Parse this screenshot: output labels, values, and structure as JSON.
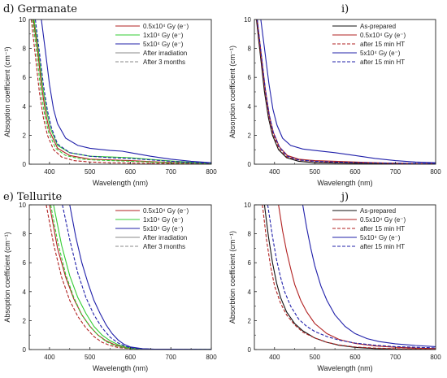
{
  "chart_data": [
    {
      "panel": "d) Germanate",
      "type": "line",
      "title": "d) Germanate",
      "xlabel": "Wavelength (nm)",
      "ylabel": "Absoption coefficient (cm⁻¹)",
      "xlim": [
        350,
        800
      ],
      "ylim": [
        0,
        10
      ],
      "xticks": [
        "400",
        "500",
        "600",
        "700",
        "800"
      ],
      "yticks": [
        "0",
        "2",
        "4",
        "6",
        "8",
        "10"
      ],
      "legend": [
        "0.5x10⁴ Gy (e⁻)",
        "1x10⁴ Gy (e⁻)",
        "5x10⁴ Gy (e⁻)",
        "After irradiation",
        "After 3 months"
      ],
      "series": [
        {
          "name": "0.5x10⁴ Gy (e⁻)",
          "color": "#b22222",
          "dash": "solid",
          "x": [
            360,
            370,
            380,
            390,
            400,
            420,
            450,
            500,
            550,
            600,
            650,
            700,
            750,
            800
          ],
          "y": [
            10,
            8.0,
            5.5,
            3.6,
            2.3,
            1.1,
            0.6,
            0.35,
            0.3,
            0.25,
            0.18,
            0.12,
            0.08,
            0.05
          ]
        },
        {
          "name": "0.5x10⁴ Gy (e⁻)",
          "color": "#b22222",
          "dash": "dashed",
          "x": [
            355,
            365,
            375,
            385,
            395,
            410,
            430,
            460,
            500,
            550,
            600,
            700,
            800
          ],
          "y": [
            10,
            7.5,
            5.0,
            3.2,
            2.0,
            1.0,
            0.5,
            0.25,
            0.15,
            0.1,
            0.08,
            0.05,
            0.03
          ]
        },
        {
          "name": "1x10⁴ Gy (e⁻)",
          "color": "#33cc33",
          "dash": "solid",
          "x": [
            362,
            372,
            382,
            392,
            402,
            420,
            450,
            500,
            550,
            600,
            650,
            700,
            750,
            800
          ],
          "y": [
            10,
            8.0,
            5.6,
            3.8,
            2.5,
            1.3,
            0.8,
            0.55,
            0.5,
            0.45,
            0.33,
            0.22,
            0.14,
            0.08
          ]
        },
        {
          "name": "1x10⁴ Gy (e⁻)",
          "color": "#33cc33",
          "dash": "dashed",
          "x": [
            358,
            368,
            378,
            388,
            398,
            415,
            440,
            480,
            520,
            600,
            700,
            800
          ],
          "y": [
            10,
            7.8,
            5.2,
            3.4,
            2.2,
            1.1,
            0.6,
            0.35,
            0.28,
            0.2,
            0.1,
            0.05
          ]
        },
        {
          "name": "5x10⁴ Gy (e⁻)",
          "color": "#2020aa",
          "dash": "solid",
          "x": [
            380,
            390,
            400,
            410,
            420,
            440,
            470,
            500,
            550,
            580,
            600,
            650,
            700,
            750,
            800
          ],
          "y": [
            10,
            7.8,
            5.5,
            3.8,
            2.8,
            1.8,
            1.3,
            1.1,
            0.95,
            0.9,
            0.8,
            0.55,
            0.35,
            0.2,
            0.1
          ]
        },
        {
          "name": "5x10⁴ Gy (e⁻)",
          "color": "#2020aa",
          "dash": "dashed",
          "x": [
            365,
            375,
            385,
            395,
            405,
            420,
            450,
            500,
            550,
            600,
            650,
            700,
            750,
            800
          ],
          "y": [
            10,
            7.8,
            5.5,
            3.7,
            2.5,
            1.4,
            0.8,
            0.55,
            0.45,
            0.4,
            0.3,
            0.2,
            0.12,
            0.07
          ]
        }
      ]
    },
    {
      "panel": "i)",
      "type": "line",
      "title": "i)",
      "xlabel": "Wavelength (nm)",
      "ylabel": "Absorption coefficient (cm⁻¹)",
      "xlim": [
        350,
        800
      ],
      "ylim": [
        0,
        10
      ],
      "xticks": [
        "400",
        "500",
        "600",
        "700",
        "800"
      ],
      "yticks": [
        "0",
        "2",
        "4",
        "6",
        "8",
        "10"
      ],
      "legend": [
        "As-prepared",
        "0.5x10⁴ Gy (e⁻)",
        "after 15 min HT",
        "5x10⁴ Gy (e⁻)",
        "after 15 min HT"
      ],
      "series": [
        {
          "name": "As-prepared",
          "color": "#111111",
          "dash": "solid",
          "x": [
            355,
            365,
            375,
            385,
            395,
            410,
            430,
            460,
            500,
            550,
            600,
            700,
            800
          ],
          "y": [
            10,
            7.5,
            5.0,
            3.2,
            2.0,
            1.0,
            0.45,
            0.2,
            0.1,
            0.08,
            0.06,
            0.04,
            0.03
          ]
        },
        {
          "name": "0.5x10⁴ Gy (e⁻)",
          "color": "#b22222",
          "dash": "solid",
          "x": [
            357,
            367,
            377,
            387,
            397,
            412,
            432,
            460,
            500,
            550,
            600,
            650,
            700,
            800
          ],
          "y": [
            10,
            7.6,
            5.2,
            3.4,
            2.2,
            1.2,
            0.6,
            0.35,
            0.25,
            0.2,
            0.15,
            0.1,
            0.07,
            0.04
          ]
        },
        {
          "name": "after 15 min HT",
          "color": "#b22222",
          "dash": "dashed",
          "x": [
            356,
            366,
            376,
            386,
            396,
            411,
            431,
            460,
            500,
            550,
            600,
            700,
            800
          ],
          "y": [
            10,
            7.5,
            5.1,
            3.3,
            2.1,
            1.1,
            0.5,
            0.28,
            0.18,
            0.13,
            0.1,
            0.06,
            0.04
          ]
        },
        {
          "name": "5x10⁴ Gy (e⁻)",
          "color": "#2020aa",
          "dash": "solid",
          "x": [
            366,
            376,
            386,
            396,
            406,
            420,
            440,
            470,
            500,
            550,
            600,
            650,
            700,
            750,
            800
          ],
          "y": [
            10,
            7.8,
            5.6,
            3.8,
            2.7,
            1.8,
            1.3,
            1.05,
            0.95,
            0.8,
            0.6,
            0.4,
            0.25,
            0.15,
            0.1
          ]
        },
        {
          "name": "after 15 min HT",
          "color": "#2020aa",
          "dash": "dashed",
          "x": [
            357,
            367,
            377,
            387,
            397,
            412,
            432,
            460,
            500,
            550,
            600,
            700,
            800
          ],
          "y": [
            10,
            7.6,
            5.2,
            3.4,
            2.2,
            1.2,
            0.55,
            0.3,
            0.2,
            0.15,
            0.12,
            0.07,
            0.05
          ]
        }
      ]
    },
    {
      "panel": "e) Tellurite",
      "type": "line",
      "title": "e) Tellurite",
      "xlabel": "Wavelength (nm)",
      "ylabel": "Absoption coefficient (cm⁻¹)",
      "xlim": [
        350,
        800
      ],
      "ylim": [
        0,
        10
      ],
      "xticks": [
        "400",
        "500",
        "600",
        "700",
        "800"
      ],
      "yticks": [
        "0",
        "2",
        "4",
        "6",
        "8",
        "10"
      ],
      "legend": [
        "0.5x10⁴ Gy (e⁻)",
        "1x10⁴ Gy (e⁻)",
        "5x10⁴ Gy (e⁻)",
        "After irradiation",
        "After 3 months"
      ],
      "series": [
        {
          "name": "0.5x10⁴ Gy (e⁻)",
          "color": "#b22222",
          "dash": "solid",
          "x": [
            400,
            420,
            440,
            460,
            480,
            500,
            520,
            540,
            560,
            580,
            600,
            650,
            700,
            800
          ],
          "y": [
            10,
            7.0,
            5.0,
            3.5,
            2.4,
            1.6,
            1.0,
            0.6,
            0.35,
            0.18,
            0.08,
            0.03,
            0.02,
            0.01
          ]
        },
        {
          "name": "0.5x10⁴ Gy (e⁻)",
          "color": "#b22222",
          "dash": "dashed",
          "x": [
            392,
            410,
            430,
            450,
            470,
            490,
            510,
            530,
            550,
            570,
            600,
            650,
            700,
            800
          ],
          "y": [
            10,
            7.3,
            5.0,
            3.4,
            2.3,
            1.5,
            0.9,
            0.5,
            0.28,
            0.14,
            0.05,
            0.02,
            0.01,
            0.01
          ]
        },
        {
          "name": "1x10⁴ Gy (e⁻)",
          "color": "#33cc33",
          "dash": "solid",
          "x": [
            410,
            430,
            450,
            470,
            490,
            510,
            530,
            550,
            570,
            590,
            610,
            650,
            700,
            800
          ],
          "y": [
            10,
            7.2,
            5.1,
            3.6,
            2.5,
            1.6,
            1.0,
            0.6,
            0.33,
            0.17,
            0.08,
            0.03,
            0.02,
            0.01
          ]
        },
        {
          "name": "1x10⁴ Gy (e⁻)",
          "color": "#33cc33",
          "dash": "dashed",
          "x": [
            403,
            420,
            440,
            460,
            480,
            500,
            520,
            540,
            560,
            580,
            600,
            650,
            700,
            800
          ],
          "y": [
            10,
            7.5,
            5.2,
            3.6,
            2.4,
            1.6,
            1.0,
            0.55,
            0.3,
            0.15,
            0.06,
            0.02,
            0.01,
            0.01
          ]
        },
        {
          "name": "5x10⁴ Gy (e⁻)",
          "color": "#2020aa",
          "dash": "solid",
          "x": [
            450,
            465,
            480,
            495,
            510,
            525,
            540,
            555,
            570,
            585,
            600,
            630,
            660,
            700,
            800
          ],
          "y": [
            10,
            7.8,
            6.0,
            4.6,
            3.4,
            2.5,
            1.7,
            1.1,
            0.65,
            0.35,
            0.18,
            0.06,
            0.03,
            0.02,
            0.01
          ]
        },
        {
          "name": "5x10⁴ Gy (e⁻)",
          "color": "#2020aa",
          "dash": "dashed",
          "x": [
            432,
            450,
            470,
            490,
            510,
            530,
            550,
            570,
            590,
            610,
            650,
            700,
            800
          ],
          "y": [
            10,
            7.6,
            5.3,
            3.6,
            2.4,
            1.5,
            0.85,
            0.45,
            0.2,
            0.08,
            0.03,
            0.02,
            0.01
          ]
        }
      ]
    },
    {
      "panel": "j)",
      "type": "line",
      "title": "j)",
      "xlabel": "Wavelength (nm)",
      "ylabel": "Absorbtion coefficient (cm⁻¹)",
      "xlim": [
        350,
        800
      ],
      "ylim": [
        0,
        10
      ],
      "xticks": [
        "400",
        "500",
        "600",
        "700",
        "800"
      ],
      "yticks": [
        "0",
        "2",
        "4",
        "6",
        "8",
        "10"
      ],
      "legend": [
        "As-prepared",
        "0.5x10⁴ Gy (e⁻)",
        "after 15 min HT",
        "5x10⁴ Gy (e⁻)",
        "after 15 min HT"
      ],
      "series": [
        {
          "name": "As-prepared",
          "color": "#111111",
          "dash": "solid",
          "x": [
            375,
            385,
            395,
            405,
            415,
            430,
            450,
            470,
            500,
            530,
            560,
            600,
            650,
            700,
            800
          ],
          "y": [
            10,
            7.8,
            6.0,
            4.6,
            3.6,
            2.6,
            1.8,
            1.3,
            0.8,
            0.5,
            0.3,
            0.15,
            0.07,
            0.04,
            0.02
          ]
        },
        {
          "name": "0.5x10⁴ Gy (e⁻)",
          "color": "#b22222",
          "dash": "solid",
          "x": [
            410,
            420,
            430,
            440,
            450,
            465,
            480,
            500,
            530,
            560,
            600,
            650,
            700,
            750,
            800
          ],
          "y": [
            10,
            8.2,
            6.8,
            5.6,
            4.5,
            3.4,
            2.6,
            1.8,
            1.1,
            0.7,
            0.42,
            0.25,
            0.16,
            0.1,
            0.07
          ]
        },
        {
          "name": "after 15 min HT",
          "color": "#b22222",
          "dash": "dashed",
          "x": [
            370,
            380,
            390,
            400,
            415,
            430,
            450,
            470,
            500,
            530,
            560,
            600,
            650,
            700,
            800
          ],
          "y": [
            10,
            7.6,
            5.8,
            4.4,
            3.2,
            2.4,
            1.7,
            1.2,
            0.8,
            0.5,
            0.32,
            0.18,
            0.1,
            0.06,
            0.03
          ]
        },
        {
          "name": "5x10⁴ Gy (e⁻)",
          "color": "#2020aa",
          "dash": "solid",
          "x": [
            470,
            480,
            490,
            500,
            515,
            530,
            550,
            575,
            600,
            630,
            660,
            700,
            750,
            800
          ],
          "y": [
            10,
            8.4,
            7.0,
            5.8,
            4.4,
            3.4,
            2.4,
            1.6,
            1.1,
            0.75,
            0.55,
            0.4,
            0.28,
            0.2
          ]
        },
        {
          "name": "after 15 min HT",
          "color": "#2020aa",
          "dash": "dashed",
          "x": [
            383,
            395,
            405,
            415,
            425,
            440,
            460,
            480,
            500,
            530,
            560,
            600,
            650,
            700,
            800
          ],
          "y": [
            10,
            7.8,
            6.2,
            5.0,
            4.0,
            3.0,
            2.1,
            1.6,
            1.25,
            0.9,
            0.65,
            0.45,
            0.3,
            0.2,
            0.12
          ]
        }
      ]
    }
  ]
}
